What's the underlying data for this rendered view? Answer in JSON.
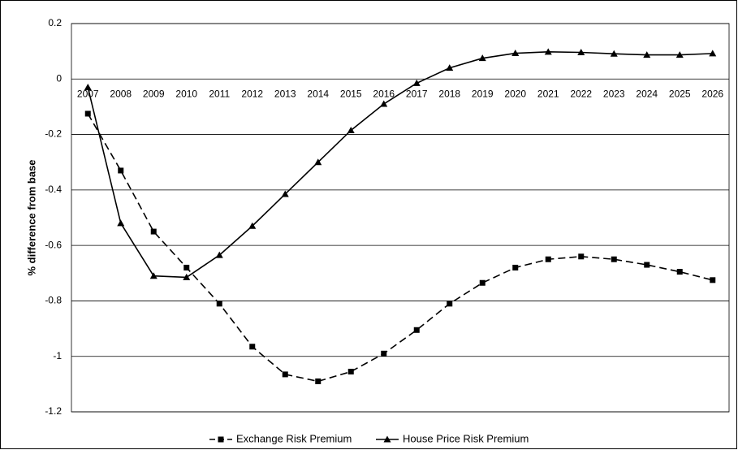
{
  "chart_data": {
    "type": "line",
    "y_label": "% difference from base",
    "categories": [
      "2007",
      "2008",
      "2009",
      "2010",
      "2011",
      "2012",
      "2013",
      "2014",
      "2015",
      "2016",
      "2017",
      "2018",
      "2019",
      "2020",
      "2021",
      "2022",
      "2023",
      "2024",
      "2025",
      "2026"
    ],
    "series": [
      {
        "name": "Exchange Risk Premium",
        "color": "#000000",
        "marker": "square",
        "line_style": "dashed",
        "values": [
          -0.125,
          -0.33,
          -0.55,
          -0.68,
          -0.81,
          -0.965,
          -1.065,
          -1.09,
          -1.055,
          -0.99,
          -0.905,
          -0.81,
          -0.735,
          -0.68,
          -0.65,
          -0.64,
          -0.65,
          -0.67,
          -0.695,
          -0.725
        ]
      },
      {
        "name": "House Price Risk Premium",
        "color": "#000000",
        "marker": "triangle",
        "line_style": "solid",
        "values": [
          -0.03,
          -0.52,
          -0.71,
          -0.715,
          -0.635,
          -0.53,
          -0.415,
          -0.3,
          -0.185,
          -0.09,
          -0.015,
          0.04,
          0.075,
          0.093,
          0.098,
          0.096,
          0.091,
          0.087,
          0.087,
          0.092
        ]
      }
    ],
    "ylim": [
      -1.2,
      0.2
    ],
    "yticks": [
      0.2,
      0,
      -0.2,
      -0.4,
      -0.6,
      -0.8,
      -1,
      -1.2
    ],
    "grid": true,
    "legend": "bottom"
  }
}
